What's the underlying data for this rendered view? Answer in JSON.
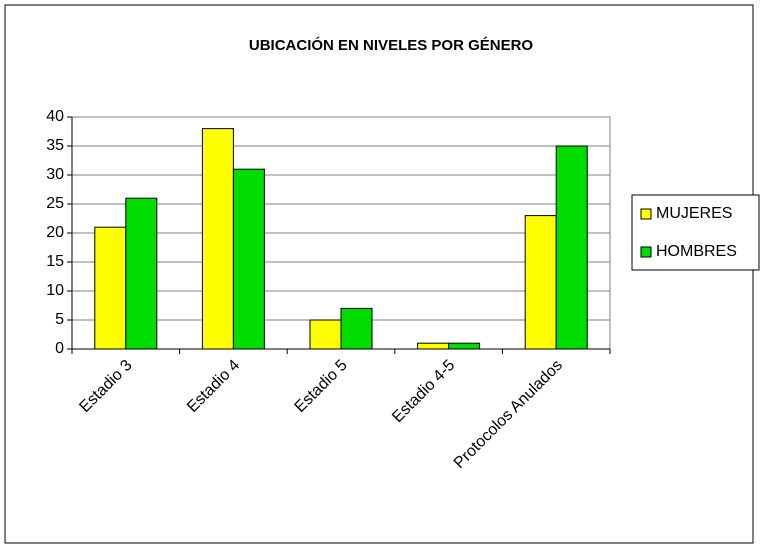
{
  "chart_data": {
    "type": "bar",
    "title": "UBICACIÓN EN NIVELES POR GÉNERO",
    "categories": [
      "Estadio 3",
      "Estadio 4",
      "Estadio 5",
      "Estadio 4-5",
      "Protocolos Anulados"
    ],
    "series": [
      {
        "name": "MUJERES",
        "color": "#ffff00",
        "values": [
          21,
          38,
          5,
          1,
          23
        ]
      },
      {
        "name": "HOMBRES",
        "color": "#00dd00",
        "values": [
          26,
          31,
          7,
          1,
          35
        ]
      }
    ],
    "ylim": [
      0,
      40
    ],
    "yticks": [
      0,
      5,
      10,
      15,
      20,
      25,
      30,
      35,
      40
    ],
    "grid": true,
    "legend": "right"
  }
}
